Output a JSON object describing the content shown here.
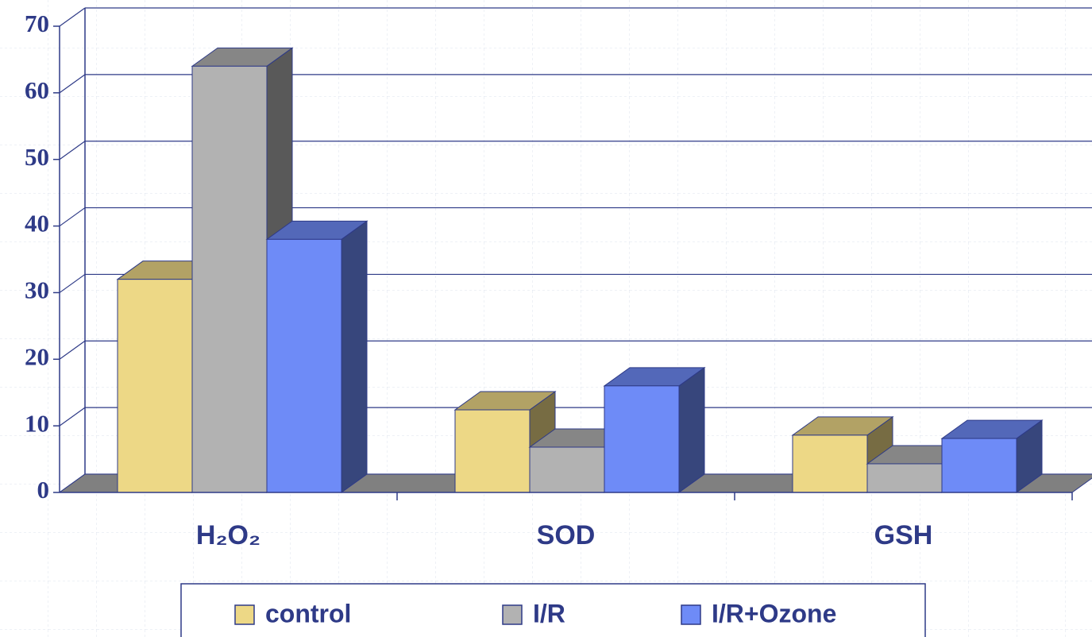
{
  "chart_data": {
    "type": "bar3d",
    "categories": [
      "H₂O₂",
      "SOD",
      "GSH"
    ],
    "series": [
      {
        "name": "control",
        "color": "#EDD886",
        "values": [
          32,
          12.4,
          8.6
        ]
      },
      {
        "name": "I/R",
        "color": "#B2B2B2",
        "values": [
          64,
          6.8,
          4.3
        ]
      },
      {
        "name": "I/R+Ozone",
        "color": "#6E8BF7",
        "values": [
          38,
          16,
          8.1
        ]
      }
    ],
    "ylim": [
      0,
      70
    ],
    "yticks": [
      0,
      10,
      20,
      30,
      40,
      50,
      60,
      70
    ],
    "grid": true,
    "legend": "bottom"
  }
}
